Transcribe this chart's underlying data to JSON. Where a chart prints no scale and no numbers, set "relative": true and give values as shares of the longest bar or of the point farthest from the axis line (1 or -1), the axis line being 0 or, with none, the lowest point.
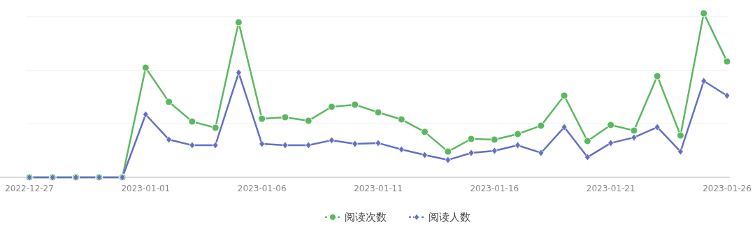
{
  "chart_data": {
    "type": "line",
    "relative": true,
    "grid": "y",
    "legend": "bottom",
    "categories": [
      "2022-12-27",
      null,
      null,
      null,
      null,
      "2023-01-01",
      null,
      null,
      null,
      null,
      "2023-01-06",
      null,
      null,
      null,
      null,
      "2023-01-11",
      null,
      null,
      null,
      null,
      "2023-01-16",
      null,
      null,
      null,
      null,
      "2023-01-21",
      null,
      null,
      null,
      null,
      "2023-01-26"
    ],
    "series": [
      {
        "name": "阅读次数",
        "color": "#5cb860",
        "marker": "circle",
        "values": [
          0,
          0,
          0,
          0,
          0,
          0.668,
          0.46,
          0.34,
          0.302,
          0.945,
          0.357,
          0.366,
          0.345,
          0.43,
          0.443,
          0.396,
          0.353,
          0.277,
          0.157,
          0.234,
          0.23,
          0.264,
          0.315,
          0.498,
          0.221,
          0.319,
          0.285,
          0.617,
          0.255,
          1,
          0.706
        ]
      },
      {
        "name": "阅读人数",
        "color": "#6370c0",
        "marker": "diamond",
        "values": [
          0,
          0,
          0,
          0,
          0,
          0.383,
          0.23,
          0.196,
          0.196,
          0.638,
          0.204,
          0.196,
          0.196,
          0.226,
          0.204,
          0.209,
          0.17,
          0.136,
          0.106,
          0.149,
          0.162,
          0.196,
          0.149,
          0.306,
          0.123,
          0.209,
          0.243,
          0.306,
          0.157,
          0.587,
          0.498
        ]
      }
    ]
  }
}
